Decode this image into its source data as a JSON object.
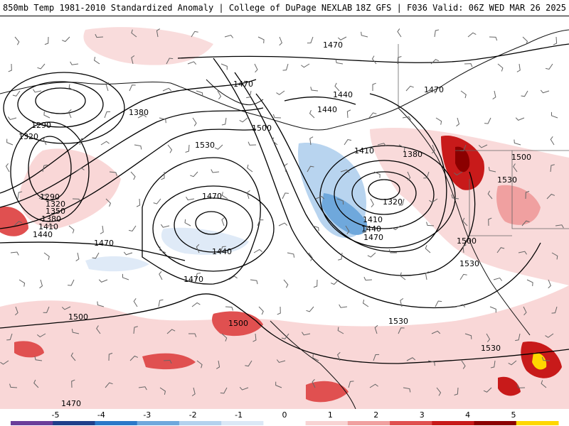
{
  "header": {
    "title_left": "850mb Temp 1981-2010 Standardized Anomaly | College of DuPage NEXLAB",
    "title_right": "18Z GFS | F036 Valid: 06Z WED MAR 26 2025"
  },
  "colorbar": {
    "ticks": [
      "-5",
      "-4",
      "-3",
      "-2",
      "-1",
      "0",
      "1",
      "2",
      "3",
      "4",
      "5"
    ],
    "colors": [
      "#6a3d9a",
      "#1f3f8a",
      "#2a78c8",
      "#6fa8dc",
      "#b4d2ee",
      "#dbe8f6",
      "#ffffff",
      "#f8d3d3",
      "#f0a0a0",
      "#e05050",
      "#c81a1a",
      "#8b0000",
      "#ffd700"
    ]
  },
  "contour_labels": [
    "1290",
    "1320",
    "1380",
    "1470",
    "1410",
    "1440",
    "1500",
    "1530",
    "1470",
    "1440",
    "1470",
    "1380",
    "1410",
    "1320",
    "1440",
    "1470",
    "1500",
    "1530",
    "1500",
    "1530",
    "1440",
    "1470",
    "1290",
    "1320",
    "1350",
    "1380",
    "1410",
    "1440",
    "1470",
    "1500",
    "1530",
    "1530",
    "1470",
    "1500",
    "1470"
  ],
  "map_style": {
    "contour_color": "#000000",
    "coast_color": "#111111",
    "border_color": "#666666",
    "barb_color": "#666666"
  }
}
